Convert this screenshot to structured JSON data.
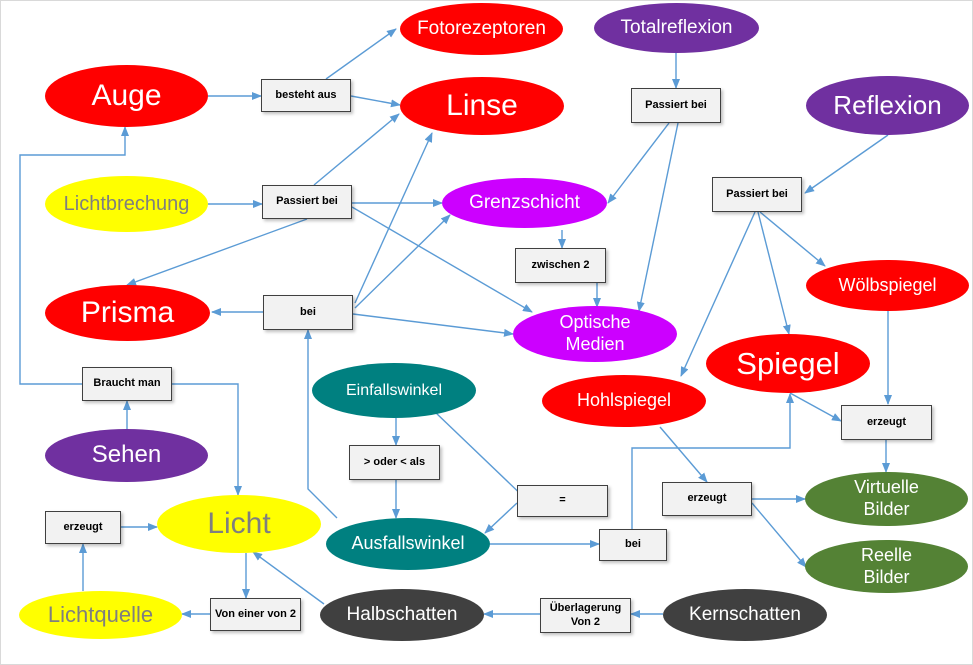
{
  "colors": {
    "arrow": "#5b9bd5",
    "red": "#ff0000",
    "purple": "#7030a0",
    "yellow": "#ffff00",
    "magenta": "#cc00ff",
    "teal": "#008080",
    "green": "#548235",
    "dark": "#404040",
    "box": "#f2f2f2"
  },
  "nodes": {
    "auge": "Auge",
    "fotorezeptoren": "Fotorezeptoren",
    "totalreflexion": "Totalreflexion",
    "linse": "Linse",
    "reflexion": "Reflexion",
    "lichtbrechung": "Lichtbrechung",
    "grenzschicht": "Grenzschicht",
    "prisma": "Prisma",
    "optische_medien": "Optische Medien",
    "woelbspiegel": "Wölbspiegel",
    "spiegel": "Spiegel",
    "einfallswinkel": "Einfallswinkel",
    "hohlspiegel": "Hohlspiegel",
    "sehen": "Sehen",
    "licht": "Licht",
    "ausfallswinkel": "Ausfallswinkel",
    "virtuelle_bilder": "Virtuelle Bilder",
    "reelle_bilder": "Reelle Bilder",
    "lichtquelle": "Lichtquelle",
    "halbschatten": "Halbschatten",
    "kernschatten": "Kernschatten"
  },
  "boxes": {
    "besteht_aus": "besteht aus",
    "passiert_bei_total": "Passiert bei",
    "passiert_bei_brechung": "Passiert bei",
    "passiert_bei_reflexion": "Passiert bei",
    "zwischen_2": "zwischen 2",
    "bei_prisma": "bei",
    "braucht_man": "Braucht man",
    "oder_als": "> oder < als",
    "gleich": "=",
    "erzeugt_hohl": "erzeugt",
    "erzeugt_spiegel": "erzeugt",
    "bei_ausfall": "bei",
    "erzeugt_licht": "erzeugt",
    "von_einer_von_2": "Von einer von 2",
    "ueberlagerung": "Überlagerung Von 2"
  }
}
